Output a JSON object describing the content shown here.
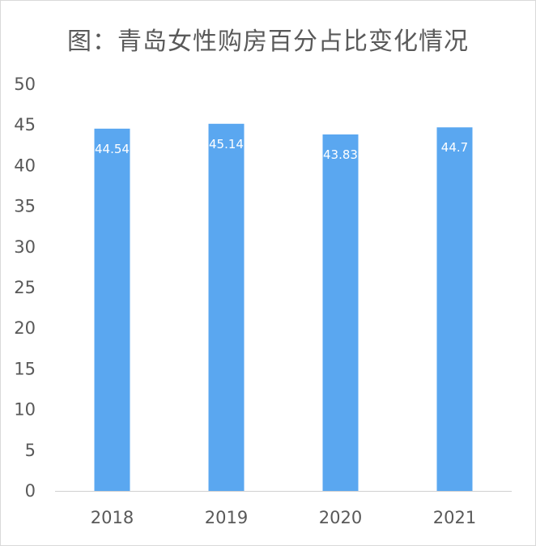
{
  "chart_data": {
    "type": "bar",
    "title": "图：青岛女性购房百分占比变化情况",
    "categories": [
      "2018",
      "2019",
      "2020",
      "2021"
    ],
    "values": [
      44.54,
      45.14,
      43.83,
      44.7
    ],
    "data_labels": [
      "44.54",
      "45.14",
      "43.83",
      "44.7"
    ],
    "ylim": [
      0,
      50
    ],
    "yticks": [
      0,
      5,
      10,
      15,
      20,
      25,
      30,
      35,
      40,
      45,
      50
    ],
    "xlabel": "",
    "ylabel": "",
    "grid": false,
    "legend": "none",
    "bar_color": "#5aa7f0",
    "axis_color": "#d0d0d0",
    "text_color": "#595959"
  }
}
